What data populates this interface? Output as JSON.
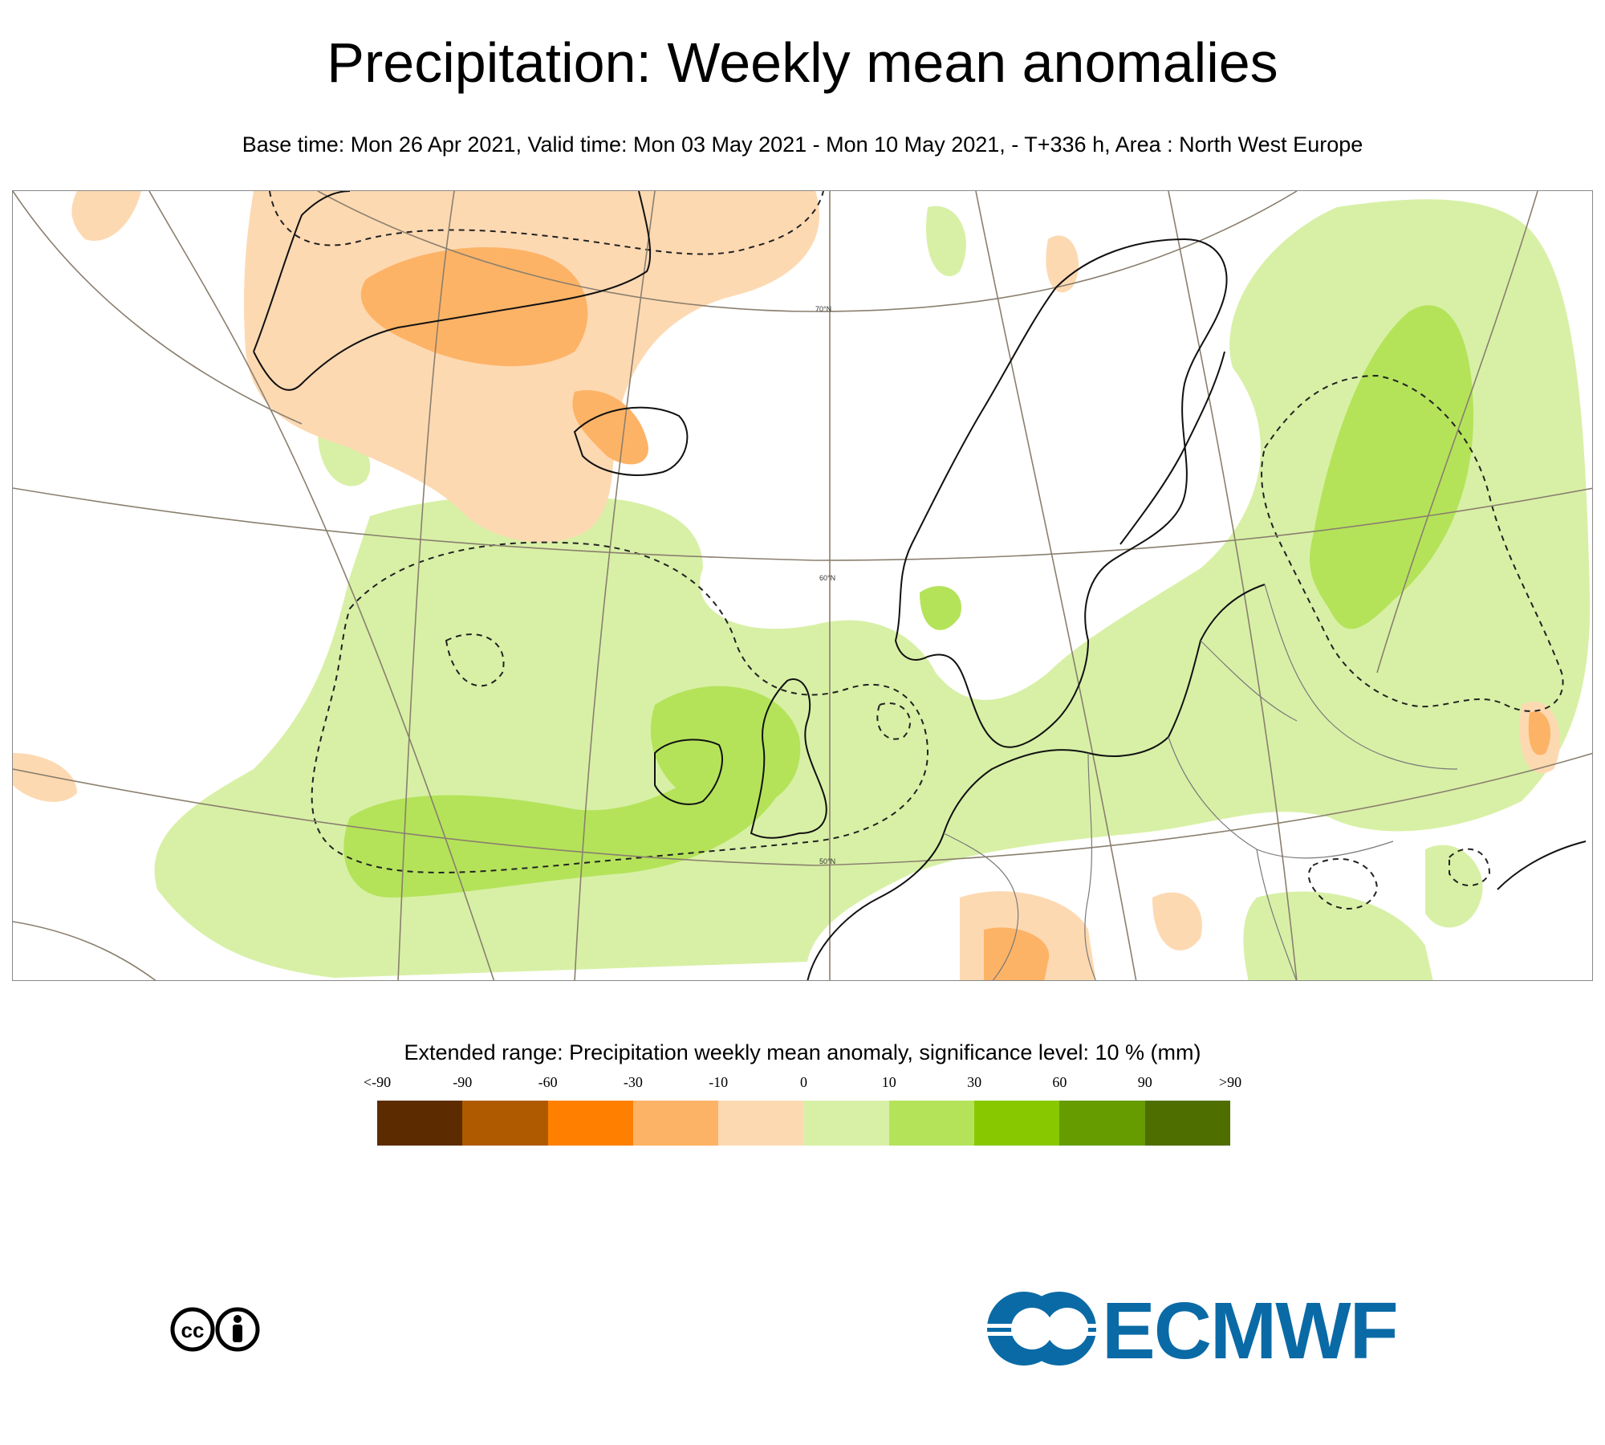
{
  "title": "Precipitation: Weekly mean anomalies",
  "subtitle": "Base time: Mon 26 Apr 2021, Valid time: Mon 03 May 2021 - Mon 10 May 2021, - T+336 h, Area : North West Europe",
  "map": {
    "parallels": [
      "70°N",
      "60°N",
      "50°N"
    ]
  },
  "legend": {
    "title": "Extended range: Precipitation weekly mean anomaly, significance level: 10 % (mm)",
    "labels": [
      "<-90",
      "-90",
      "-60",
      "-30",
      "-10",
      "0",
      "10",
      "30",
      "60",
      "90",
      ">90"
    ],
    "colors": [
      "#5c2c00",
      "#b05a00",
      "#ff8000",
      "#fdb366",
      "#fdd9b2",
      "#d8f0a6",
      "#b4e35a",
      "#88c800",
      "#669c00",
      "#4f6e00"
    ]
  },
  "footer": {
    "license_icon": "cc-by-icon",
    "logo": "ECMWF"
  }
}
